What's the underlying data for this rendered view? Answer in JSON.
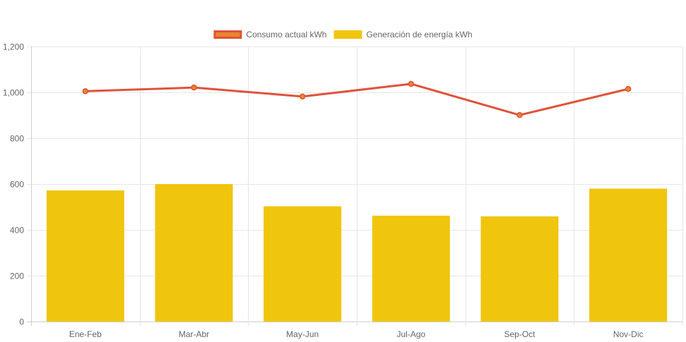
{
  "chart_data": {
    "type": "bar",
    "categories": [
      "Ene-Feb",
      "Mar-Abr",
      "May-Jun",
      "Jul-Ago",
      "Sep-Oct",
      "Nov-Dic"
    ],
    "series": [
      {
        "name": "Consumo actual kWh",
        "type": "line",
        "values": [
          1005,
          1021,
          982,
          1037,
          901,
          1015
        ],
        "color": "#e0523a",
        "fill": "#e8862a"
      },
      {
        "name": "Generación de energía kWh",
        "type": "bar",
        "values": [
          572,
          600,
          503,
          462,
          459,
          580
        ],
        "color": "#f0c50e"
      }
    ],
    "yticks": [
      0,
      200,
      400,
      600,
      800,
      1000,
      1200
    ],
    "ytick_labels": [
      "0",
      "200",
      "400",
      "600",
      "800",
      "1,000",
      "1,200"
    ],
    "ylim": [
      0,
      1200
    ],
    "grid": true,
    "legend_position": "top-center",
    "title": "",
    "xlabel": "",
    "ylabel": ""
  }
}
